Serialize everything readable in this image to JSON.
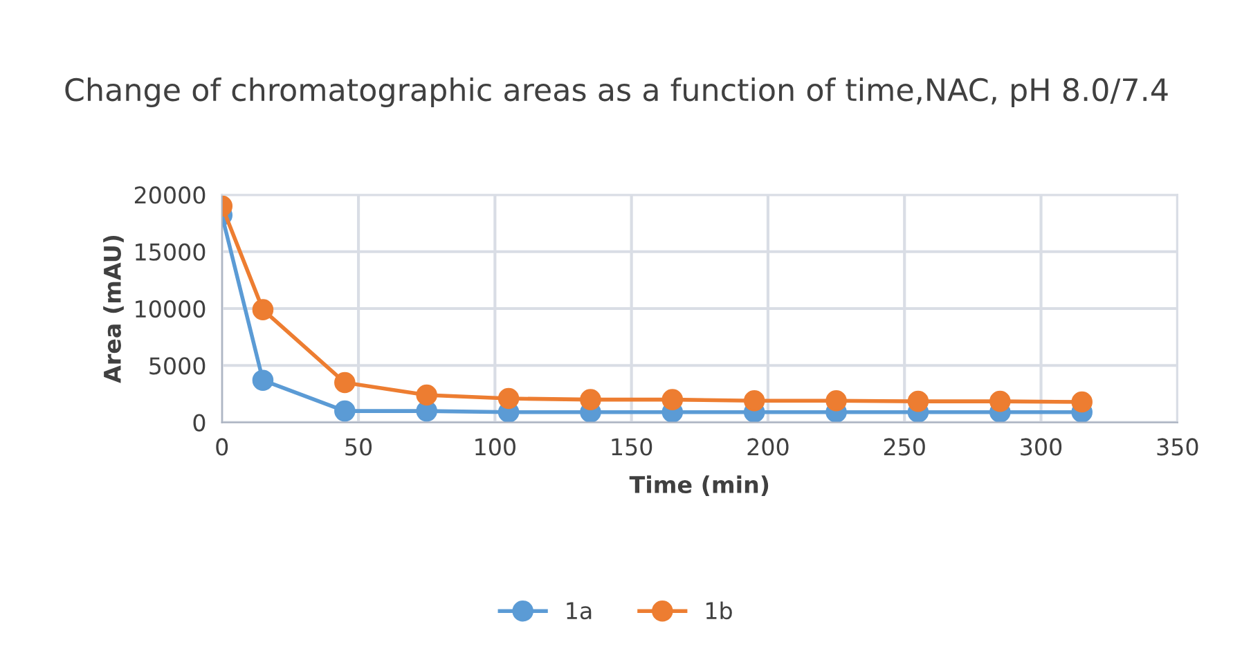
{
  "chart_data": {
    "type": "line",
    "title": "Change of chromatographic areas as a function of time,NAC, pH 8.0/7.4",
    "xlabel": "Time (min)",
    "ylabel": "Area (mAU)",
    "x": [
      0,
      15,
      45,
      75,
      105,
      135,
      165,
      195,
      225,
      255,
      285,
      315
    ],
    "series": [
      {
        "name": "1a",
        "color": "#5b9bd5",
        "values": [
          18200,
          3700,
          1000,
          1000,
          900,
          900,
          900,
          900,
          900,
          900,
          900,
          900
        ]
      },
      {
        "name": "1b",
        "color": "#ed7d31",
        "values": [
          19000,
          9900,
          3500,
          2400,
          2100,
          2000,
          2000,
          1900,
          1900,
          1850,
          1850,
          1800
        ]
      }
    ],
    "xlim": [
      0,
      350
    ],
    "xticks": [
      0,
      50,
      100,
      150,
      200,
      250,
      300,
      350
    ],
    "ylim": [
      0,
      20000
    ],
    "yticks": [
      0,
      5000,
      10000,
      15000,
      20000
    ],
    "grid": true,
    "legend": "bottom",
    "marker": "circle",
    "line_style": "solid"
  }
}
